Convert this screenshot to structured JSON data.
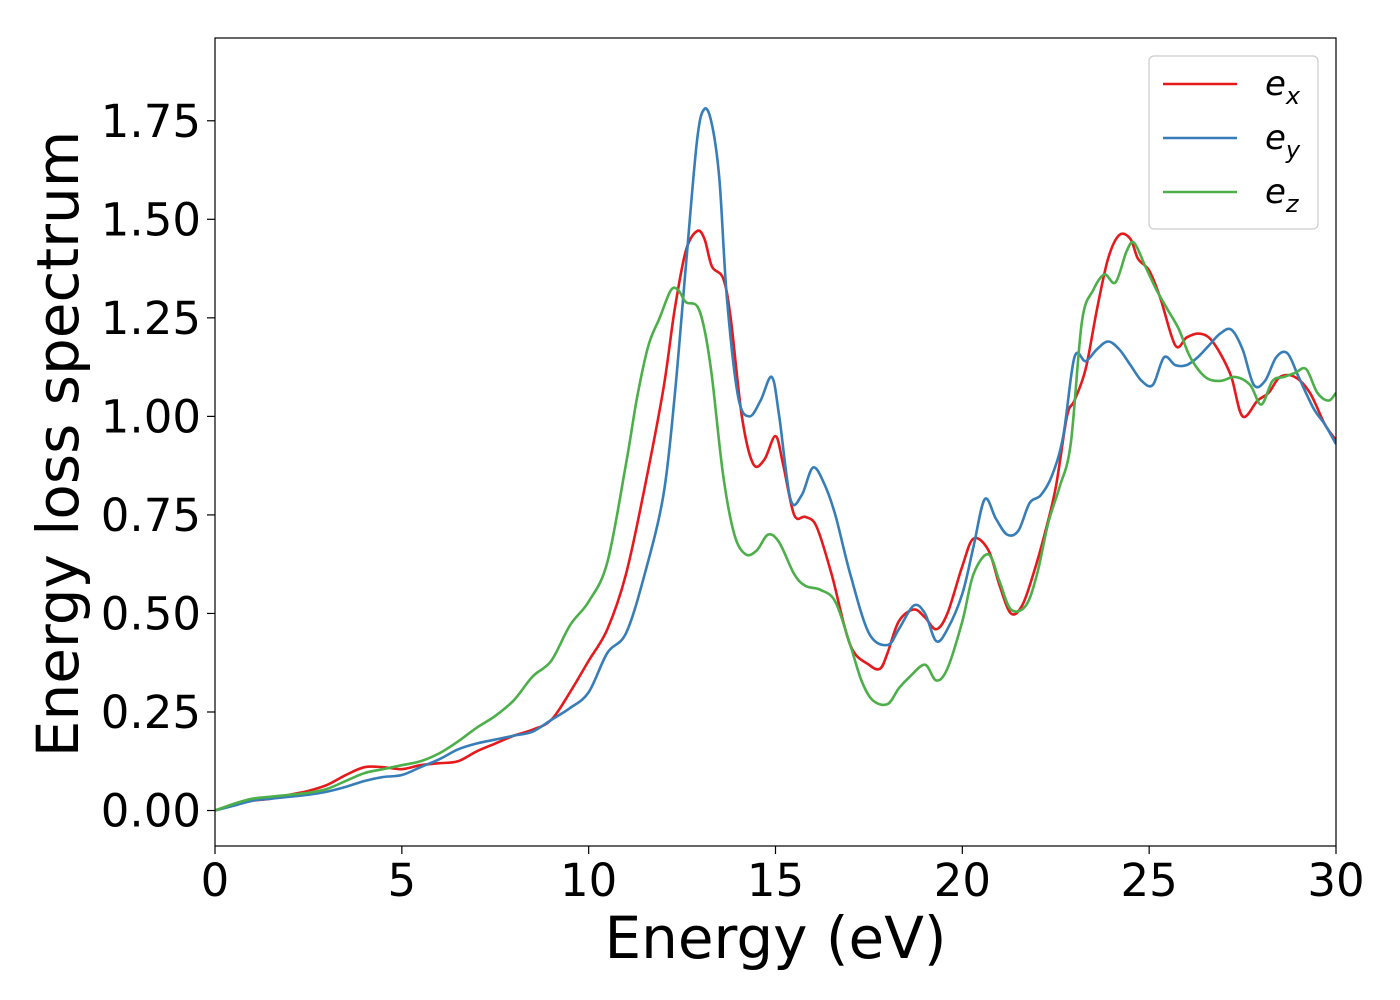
{
  "chart_data": {
    "type": "line",
    "title": "",
    "xlabel": "Energy (eV)",
    "ylabel": "Energy loss spectrum",
    "xlim": [
      0,
      30
    ],
    "ylim": [
      -0.09,
      1.96
    ],
    "xticks": [
      0,
      5,
      10,
      15,
      20,
      25,
      30
    ],
    "xtick_labels": [
      "0",
      "5",
      "10",
      "15",
      "20",
      "25",
      "30"
    ],
    "yticks": [
      0.0,
      0.25,
      0.5,
      0.75,
      1.0,
      1.25,
      1.5,
      1.75
    ],
    "ytick_labels": [
      "0.00",
      "0.25",
      "0.50",
      "0.75",
      "1.00",
      "1.25",
      "1.50",
      "1.75"
    ],
    "grid": false,
    "legend_position": "top-right",
    "series": [
      {
        "name": "e_x",
        "label_base": "e",
        "label_sub": "x",
        "color": "#e41a1c",
        "x": [
          0,
          0.5,
          1,
          1.5,
          2,
          2.5,
          3,
          3.5,
          4,
          4.5,
          5,
          5.5,
          6,
          6.5,
          7,
          7.5,
          8,
          8.5,
          9,
          9.5,
          10,
          10.5,
          11,
          11.5,
          12,
          12.3,
          12.6,
          12.9,
          13.1,
          13.3,
          13.6,
          13.8,
          14.1,
          14.4,
          14.7,
          15.0,
          15.2,
          15.5,
          15.8,
          16.1,
          16.5,
          17.0,
          17.5,
          17.8,
          18.0,
          18.3,
          18.7,
          19.0,
          19.3,
          19.6,
          20.0,
          20.3,
          20.7,
          21.0,
          21.3,
          21.6,
          21.9,
          22.2,
          22.5,
          22.8,
          23.0,
          23.3,
          23.6,
          23.9,
          24.2,
          24.5,
          24.7,
          25.0,
          25.3,
          25.7,
          26.0,
          26.3,
          26.6,
          26.9,
          27.2,
          27.5,
          27.9,
          28.2,
          28.5,
          28.9,
          29.3,
          29.7,
          30
        ],
        "y": [
          0,
          0.015,
          0.025,
          0.03,
          0.04,
          0.05,
          0.065,
          0.09,
          0.11,
          0.11,
          0.105,
          0.115,
          0.12,
          0.125,
          0.15,
          0.17,
          0.19,
          0.205,
          0.23,
          0.3,
          0.38,
          0.46,
          0.6,
          0.82,
          1.07,
          1.27,
          1.42,
          1.47,
          1.45,
          1.38,
          1.35,
          1.25,
          1.0,
          0.88,
          0.89,
          0.95,
          0.88,
          0.75,
          0.745,
          0.72,
          0.6,
          0.42,
          0.37,
          0.36,
          0.4,
          0.48,
          0.51,
          0.49,
          0.46,
          0.5,
          0.62,
          0.69,
          0.66,
          0.57,
          0.5,
          0.52,
          0.6,
          0.7,
          0.82,
          1.0,
          1.04,
          1.12,
          1.27,
          1.4,
          1.46,
          1.45,
          1.4,
          1.37,
          1.3,
          1.18,
          1.2,
          1.21,
          1.2,
          1.16,
          1.1,
          1.0,
          1.04,
          1.06,
          1.1,
          1.1,
          1.06,
          0.98,
          0.94
        ]
      },
      {
        "name": "e_y",
        "label_base": "e",
        "label_sub": "y",
        "color": "#377eb8",
        "x": [
          0,
          0.5,
          1,
          1.5,
          2,
          2.5,
          3,
          3.5,
          4,
          4.5,
          5,
          5.5,
          6,
          6.5,
          7,
          7.5,
          8,
          8.5,
          9,
          9.5,
          10,
          10.5,
          11,
          11.5,
          12,
          12.3,
          12.6,
          12.9,
          13.1,
          13.3,
          13.5,
          13.7,
          14.0,
          14.3,
          14.6,
          14.9,
          15.1,
          15.4,
          15.7,
          16.0,
          16.3,
          16.6,
          17.0,
          17.5,
          18.0,
          18.3,
          18.7,
          19.0,
          19.3,
          19.6,
          20.0,
          20.3,
          20.6,
          20.9,
          21.2,
          21.5,
          21.8,
          22.1,
          22.4,
          22.7,
          23.0,
          23.3,
          23.6,
          23.9,
          24.2,
          24.5,
          24.8,
          25.1,
          25.4,
          25.7,
          26.0,
          26.3,
          26.6,
          26.9,
          27.2,
          27.5,
          27.8,
          28.1,
          28.4,
          28.7,
          29.0,
          29.4,
          29.7,
          30
        ],
        "y": [
          0,
          0.012,
          0.025,
          0.03,
          0.035,
          0.04,
          0.048,
          0.06,
          0.075,
          0.085,
          0.09,
          0.11,
          0.13,
          0.155,
          0.17,
          0.18,
          0.19,
          0.2,
          0.23,
          0.26,
          0.3,
          0.4,
          0.45,
          0.6,
          0.8,
          1.05,
          1.38,
          1.7,
          1.78,
          1.74,
          1.6,
          1.3,
          1.05,
          1.0,
          1.04,
          1.1,
          1.0,
          0.79,
          0.8,
          0.87,
          0.83,
          0.75,
          0.6,
          0.45,
          0.42,
          0.46,
          0.52,
          0.5,
          0.43,
          0.46,
          0.55,
          0.67,
          0.79,
          0.74,
          0.7,
          0.71,
          0.78,
          0.8,
          0.85,
          0.95,
          1.15,
          1.14,
          1.17,
          1.19,
          1.17,
          1.13,
          1.09,
          1.08,
          1.15,
          1.13,
          1.13,
          1.15,
          1.18,
          1.21,
          1.22,
          1.17,
          1.08,
          1.09,
          1.15,
          1.16,
          1.1,
          1.02,
          0.98,
          0.93
        ]
      },
      {
        "name": "e_z",
        "label_base": "e",
        "label_sub": "z",
        "color": "#4daf4a",
        "x": [
          0,
          0.5,
          1,
          1.5,
          2,
          2.5,
          3,
          3.5,
          4,
          4.5,
          5,
          5.5,
          6,
          6.5,
          7,
          7.5,
          8,
          8.5,
          9,
          9.5,
          10,
          10.5,
          11,
          11.3,
          11.6,
          11.9,
          12.2,
          12.4,
          12.6,
          12.9,
          13.1,
          13.3,
          13.6,
          13.9,
          14.2,
          14.5,
          14.8,
          15.1,
          15.5,
          15.8,
          16.2,
          16.6,
          17.0,
          17.3,
          17.6,
          18.0,
          18.3,
          18.6,
          19.0,
          19.3,
          19.6,
          20.0,
          20.3,
          20.7,
          21.0,
          21.3,
          21.7,
          22.0,
          22.3,
          22.6,
          22.9,
          23.2,
          23.5,
          23.8,
          24.1,
          24.4,
          24.6,
          24.9,
          25.2,
          25.5,
          25.8,
          26.1,
          26.5,
          26.9,
          27.3,
          27.7,
          28.0,
          28.3,
          28.6,
          28.9,
          29.2,
          29.5,
          29.8,
          30
        ],
        "y": [
          0,
          0.017,
          0.03,
          0.035,
          0.04,
          0.045,
          0.055,
          0.075,
          0.095,
          0.105,
          0.115,
          0.125,
          0.145,
          0.175,
          0.21,
          0.24,
          0.28,
          0.34,
          0.38,
          0.47,
          0.53,
          0.63,
          0.88,
          1.05,
          1.18,
          1.25,
          1.32,
          1.32,
          1.29,
          1.28,
          1.22,
          1.1,
          0.85,
          0.7,
          0.65,
          0.66,
          0.7,
          0.68,
          0.6,
          0.57,
          0.56,
          0.53,
          0.42,
          0.33,
          0.28,
          0.27,
          0.31,
          0.34,
          0.37,
          0.33,
          0.36,
          0.48,
          0.6,
          0.65,
          0.58,
          0.51,
          0.52,
          0.6,
          0.73,
          0.82,
          0.93,
          1.24,
          1.32,
          1.36,
          1.34,
          1.42,
          1.44,
          1.38,
          1.32,
          1.27,
          1.22,
          1.15,
          1.1,
          1.09,
          1.1,
          1.08,
          1.03,
          1.09,
          1.1,
          1.11,
          1.12,
          1.06,
          1.04,
          1.06
        ]
      }
    ]
  }
}
